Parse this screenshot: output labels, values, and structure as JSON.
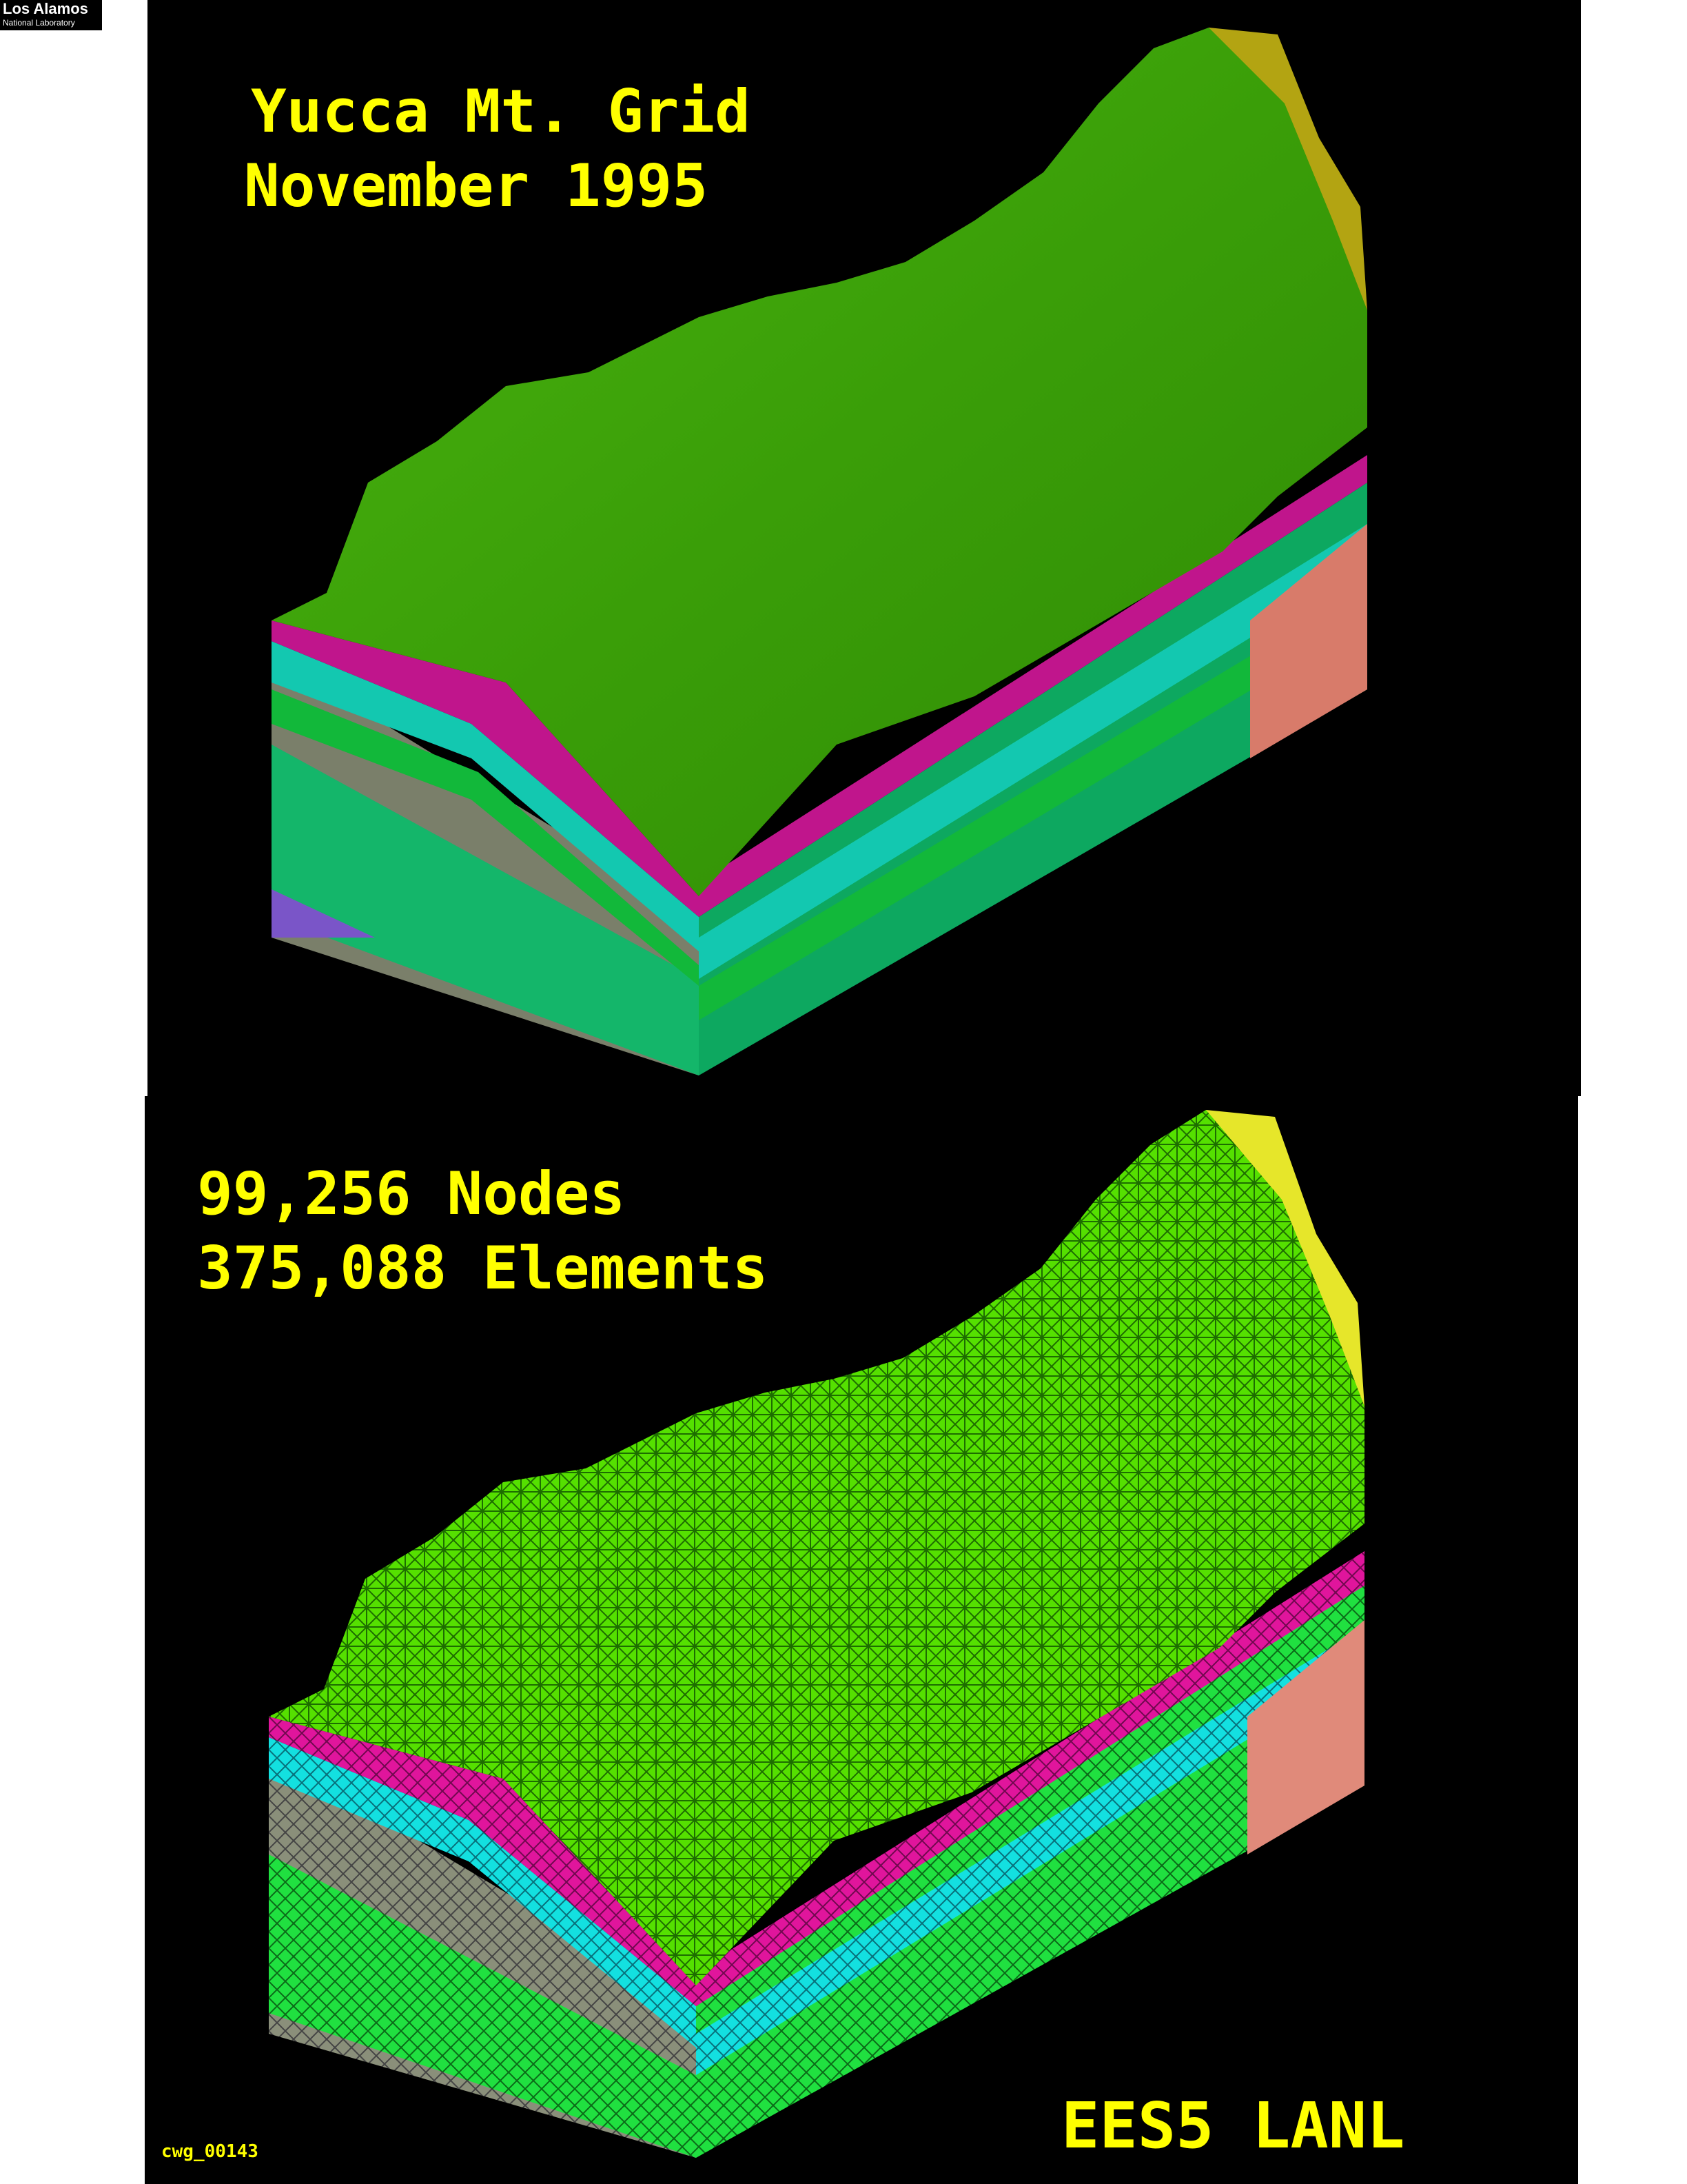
{
  "logo": {
    "line1": "Los Alamos",
    "line2": "National Laboratory"
  },
  "top_panel": {
    "title_line1": "Yucca Mt. Grid",
    "title_line2": "November 1995"
  },
  "bottom_panel": {
    "title_line1": "99,256 Nodes",
    "title_line2": "375,088 Elements"
  },
  "footer": {
    "credit": "EES5 LANL",
    "image_code": "cwg_00143"
  },
  "colors": {
    "background": "#000000",
    "text": "#ffff00",
    "surface_top": "#3fa80a",
    "surface_mesh": "#66ff00",
    "layer_magenta": "#c0158c",
    "layer_cyan": "#13c8b0",
    "layer_green": "#12b83a",
    "layer_purple": "#8a2be2",
    "layer_salmon": "#d87b6a",
    "layer_gray": "#7a7f6a"
  }
}
